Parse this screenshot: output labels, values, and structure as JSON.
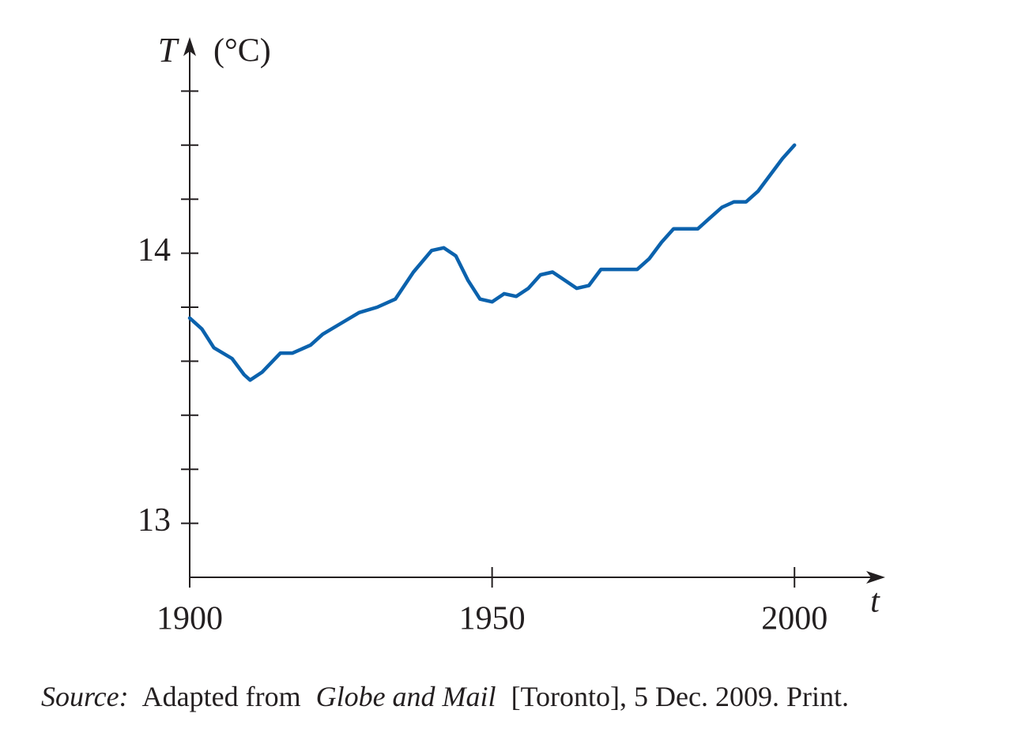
{
  "chart_data": {
    "type": "line",
    "y_label": "T",
    "y_unit": "(°C)",
    "x_label": "t",
    "source": [
      "Source:",
      "Adapted from",
      "Globe and Mail",
      "[Toronto], 5 Dec. 2009. Print."
    ],
    "xlim": [
      1900,
      2015
    ],
    "xticks": [
      1900,
      1950,
      2000
    ],
    "ylim": [
      12.8,
      14.8
    ],
    "yticks": [
      13,
      14
    ],
    "yminorticks": [
      13.2,
      13.4,
      13.6,
      13.8,
      14.2,
      14.4,
      14.6
    ],
    "grid": false,
    "x": [
      1900,
      1902,
      1904,
      1907,
      1909,
      1910,
      1912,
      1915,
      1917,
      1920,
      1922,
      1925,
      1928,
      1931,
      1934,
      1937,
      1940,
      1942,
      1944,
      1946,
      1948,
      1950,
      1952,
      1954,
      1956,
      1958,
      1960,
      1962,
      1964,
      1966,
      1968,
      1970,
      1972,
      1974,
      1976,
      1978,
      1980,
      1982,
      1984,
      1986,
      1988,
      1990,
      1992,
      1994,
      1996,
      1998,
      2000
    ],
    "series": [
      {
        "color": "#0b62ad",
        "values": [
          13.76,
          13.72,
          13.65,
          13.61,
          13.55,
          13.53,
          13.56,
          13.63,
          13.63,
          13.66,
          13.7,
          13.74,
          13.78,
          13.8,
          13.83,
          13.93,
          14.01,
          14.02,
          13.99,
          13.9,
          13.83,
          13.82,
          13.85,
          13.84,
          13.87,
          13.92,
          13.93,
          13.9,
          13.87,
          13.88,
          13.94,
          13.94,
          13.94,
          13.94,
          13.98,
          14.04,
          14.09,
          14.09,
          14.09,
          14.13,
          14.17,
          14.19,
          14.19,
          14.23,
          14.29,
          14.35,
          14.4
        ]
      }
    ]
  }
}
